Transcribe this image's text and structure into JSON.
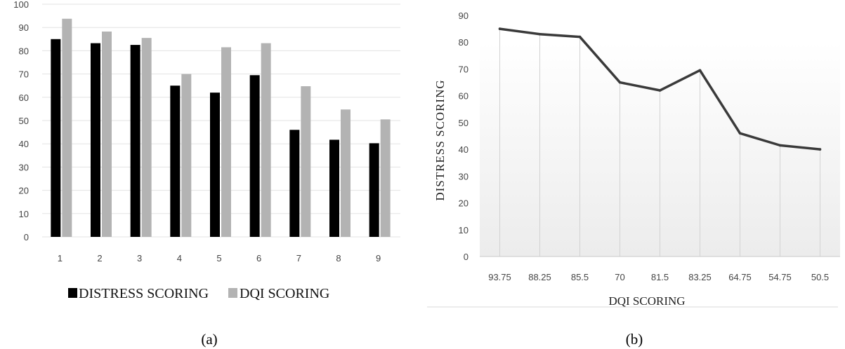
{
  "chart_data": [
    {
      "type": "bar",
      "categories": [
        "1",
        "2",
        "3",
        "4",
        "5",
        "6",
        "7",
        "8",
        "9"
      ],
      "series": [
        {
          "name": "DISTRESS SCORING",
          "values": [
            85,
            83.25,
            82.5,
            65,
            62,
            69.5,
            46,
            41.75,
            40.25
          ]
        },
        {
          "name": "DQI SCORING",
          "values": [
            93.75,
            88.25,
            85.5,
            70,
            81.5,
            83.25,
            64.75,
            54.75,
            50.5
          ]
        }
      ],
      "colors": [
        "#000000",
        "#b3b3b3"
      ],
      "ylim": [
        0,
        100
      ],
      "yticks": [
        "0",
        "10",
        "20",
        "30",
        "40",
        "50",
        "60",
        "70",
        "80",
        "90",
        "100"
      ],
      "grid": true,
      "legend_position": "bottom",
      "caption": "(a)"
    },
    {
      "type": "line",
      "categories": [
        "93.75",
        "88.25",
        "85.5",
        "70",
        "81.5",
        "83.25",
        "64.75",
        "54.75",
        "50.5"
      ],
      "series": [
        {
          "values": [
            85,
            83,
            82,
            65,
            62,
            69.5,
            46,
            41.5,
            40
          ]
        }
      ],
      "color": "#3a3a3a",
      "ylim": [
        0,
        90
      ],
      "yticks": [
        "0",
        "10",
        "20",
        "30",
        "40",
        "50",
        "60",
        "70",
        "80",
        "90"
      ],
      "xlabel": "DQI SCORING",
      "ylabel": "DISTRESS SCORING",
      "grid": false,
      "caption": "(b)"
    }
  ]
}
